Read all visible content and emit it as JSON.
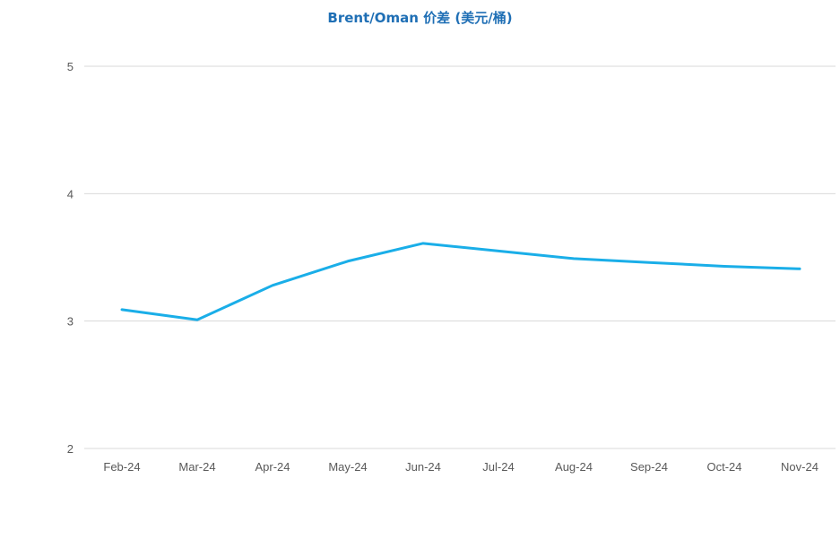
{
  "chart_data": {
    "type": "line",
    "title": "Brent/Oman 价差 (美元/桶)",
    "xlabel": "",
    "ylabel": "",
    "categories": [
      "Feb-24",
      "Mar-24",
      "Apr-24",
      "May-24",
      "Jun-24",
      "Jul-24",
      "Aug-24",
      "Sep-24",
      "Oct-24",
      "Nov-24"
    ],
    "series": [
      {
        "values": [
          3.09,
          3.01,
          3.28,
          3.47,
          3.61,
          3.55,
          3.49,
          3.46,
          3.43,
          3.41
        ],
        "color": "#1aaee8"
      }
    ],
    "ylim": [
      2,
      5
    ],
    "yticks": [
      2,
      3,
      4,
      5
    ],
    "grid": true,
    "legend": "none"
  }
}
